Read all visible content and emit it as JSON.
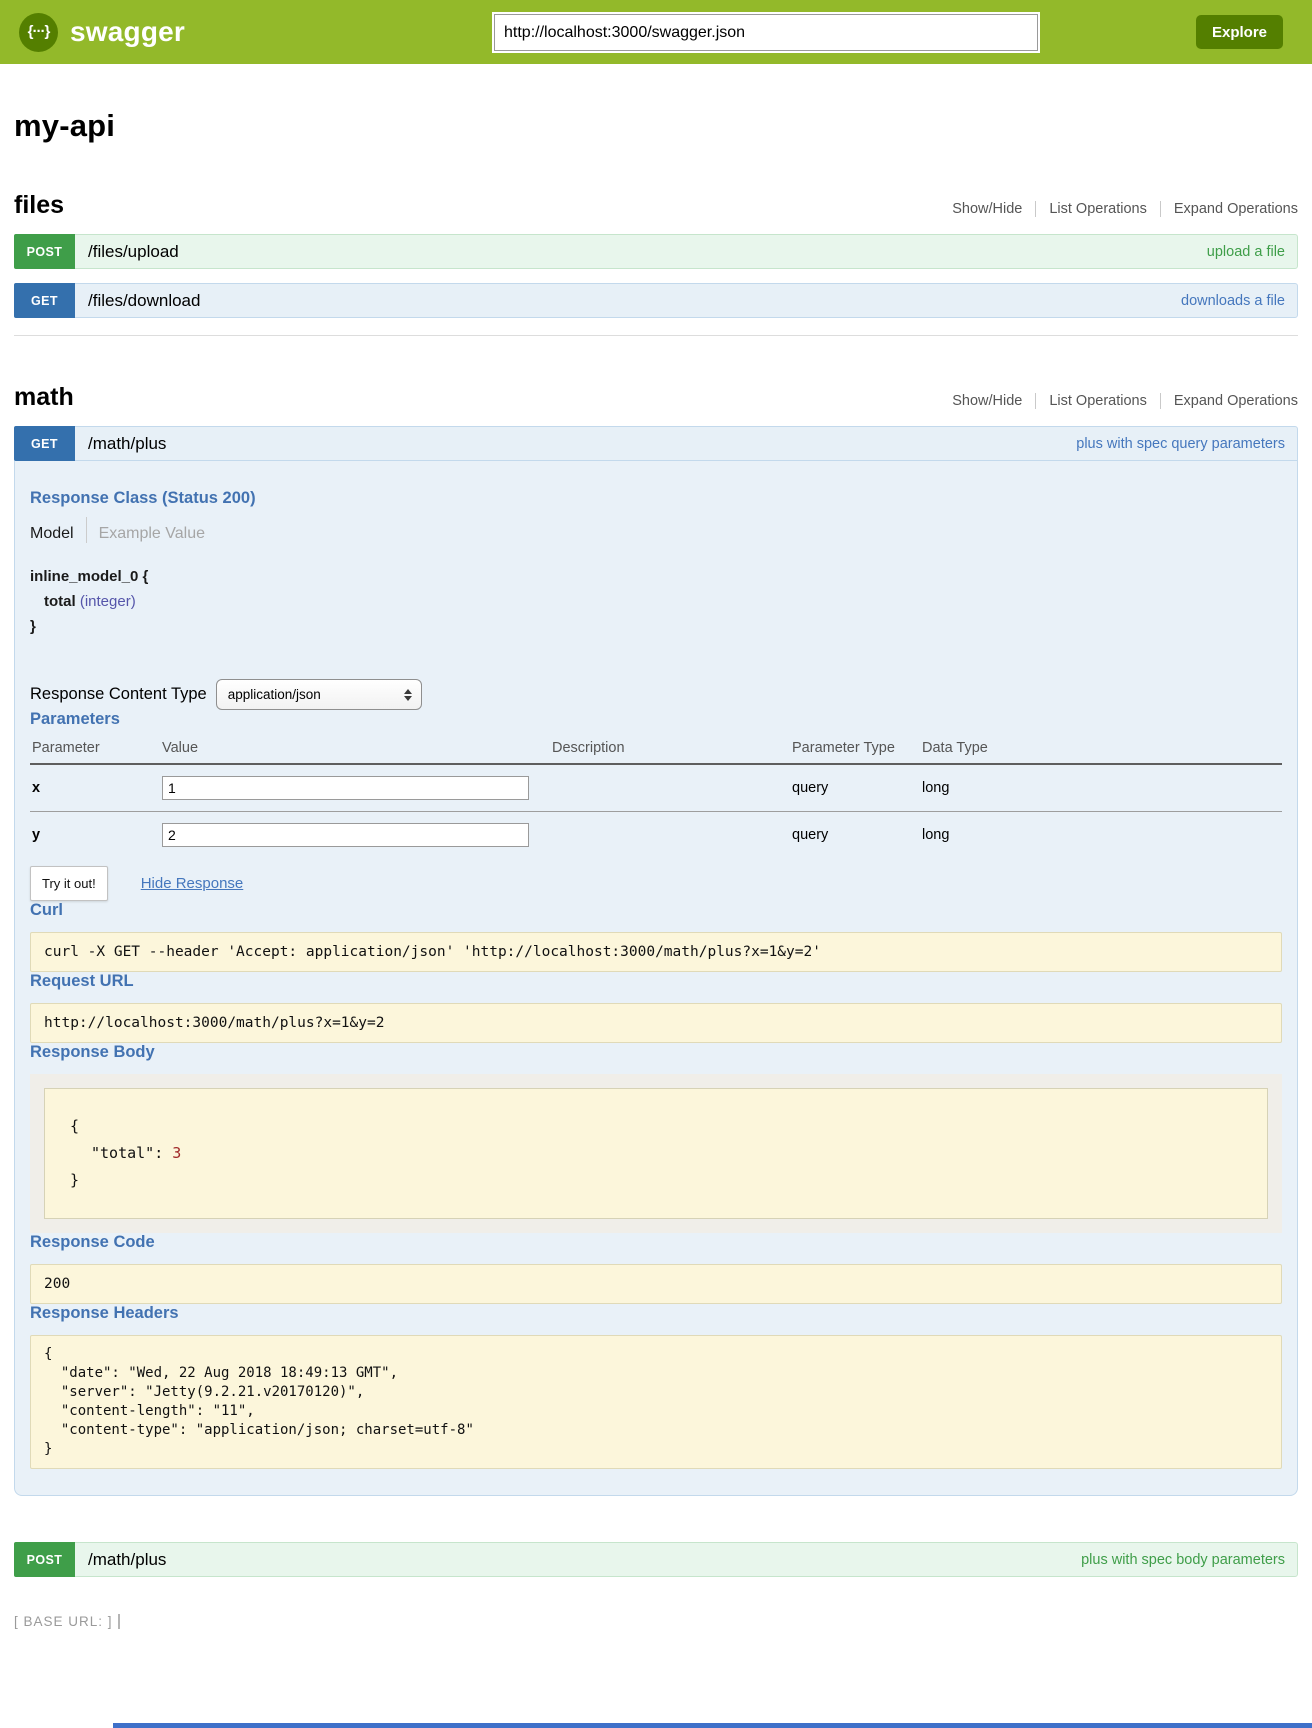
{
  "colors": {
    "header_bg": "#93b92a",
    "header_accent": "#547f00",
    "post_green": "#3f9e49",
    "post_row_bg": "#e8f6ec",
    "post_row_border": "#c6e5cc",
    "get_blue": "#3470ad",
    "get_row_bg": "#e7f0f7",
    "get_row_border": "#c3d9ec",
    "content_bg": "#e9f1f8",
    "heading_blue": "#4272b1",
    "link_blue": "#4577bd",
    "code_bg": "#fcf6db",
    "code_border": "#e0dab8",
    "body_box_bg": "#f0eee9",
    "number_red": "#a02828",
    "type_purple": "#5555aa",
    "bottom_bar_blue": "#3e70c9"
  },
  "header": {
    "logo_glyph": "{···}",
    "logo_text": "swagger",
    "url_input": "http://localhost:3000/swagger.json",
    "explore_button": "Explore"
  },
  "page": {
    "title": "my-api"
  },
  "sections": [
    {
      "name": "files",
      "controls": {
        "show_hide": "Show/Hide",
        "list_operations": "List Operations",
        "expand_operations": "Expand Operations"
      },
      "operations": [
        {
          "method": "POST",
          "path": "/files/upload",
          "summary": "upload a file"
        },
        {
          "method": "GET",
          "path": "/files/download",
          "summary": "downloads a file"
        }
      ]
    },
    {
      "name": "math",
      "controls": {
        "show_hide": "Show/Hide",
        "list_operations": "List Operations",
        "expand_operations": "Expand Operations"
      },
      "operations": [
        {
          "method": "GET",
          "path": "/math/plus",
          "summary": "plus with spec query parameters"
        },
        {
          "method": "POST",
          "path": "/math/plus",
          "summary": "plus with spec body parameters"
        }
      ]
    }
  ],
  "detail": {
    "response_class": {
      "heading": "Response Class (Status 200)",
      "tabs": {
        "model": "Model",
        "example": "Example Value"
      },
      "model_open": "inline_model_0 {",
      "property_name": "total",
      "property_type": "(integer)",
      "model_close": "}"
    },
    "response_content_type": {
      "label": "Response Content Type",
      "value": "application/json"
    },
    "parameters": {
      "heading": "Parameters",
      "columns": [
        "Parameter",
        "Value",
        "Description",
        "Parameter Type",
        "Data Type"
      ],
      "rows": [
        {
          "name": "x",
          "value": "1",
          "description": "",
          "param_type": "query",
          "data_type": "long"
        },
        {
          "name": "y",
          "value": "2",
          "description": "",
          "param_type": "query",
          "data_type": "long"
        }
      ]
    },
    "try_it_out": "Try it out!",
    "hide_response": "Hide Response",
    "curl": {
      "heading": "Curl",
      "command": "curl -X GET --header 'Accept: application/json' 'http://localhost:3000/math/plus?x=1&y=2'"
    },
    "request_url": {
      "heading": "Request URL",
      "value": "http://localhost:3000/math/plus?x=1&y=2"
    },
    "response_body": {
      "heading": "Response Body",
      "open": "{",
      "key": "\"total\":",
      "value": "3",
      "close": "}"
    },
    "response_code": {
      "heading": "Response Code",
      "value": "200"
    },
    "response_headers": {
      "heading": "Response Headers",
      "text": "{\n  \"date\": \"Wed, 22 Aug 2018 18:49:13 GMT\",\n  \"server\": \"Jetty(9.2.21.v20170120)\",\n  \"content-length\": \"11\",\n  \"content-type\": \"application/json; charset=utf-8\"\n}"
    }
  },
  "footer": {
    "base_url": "[ BASE URL: ]"
  }
}
